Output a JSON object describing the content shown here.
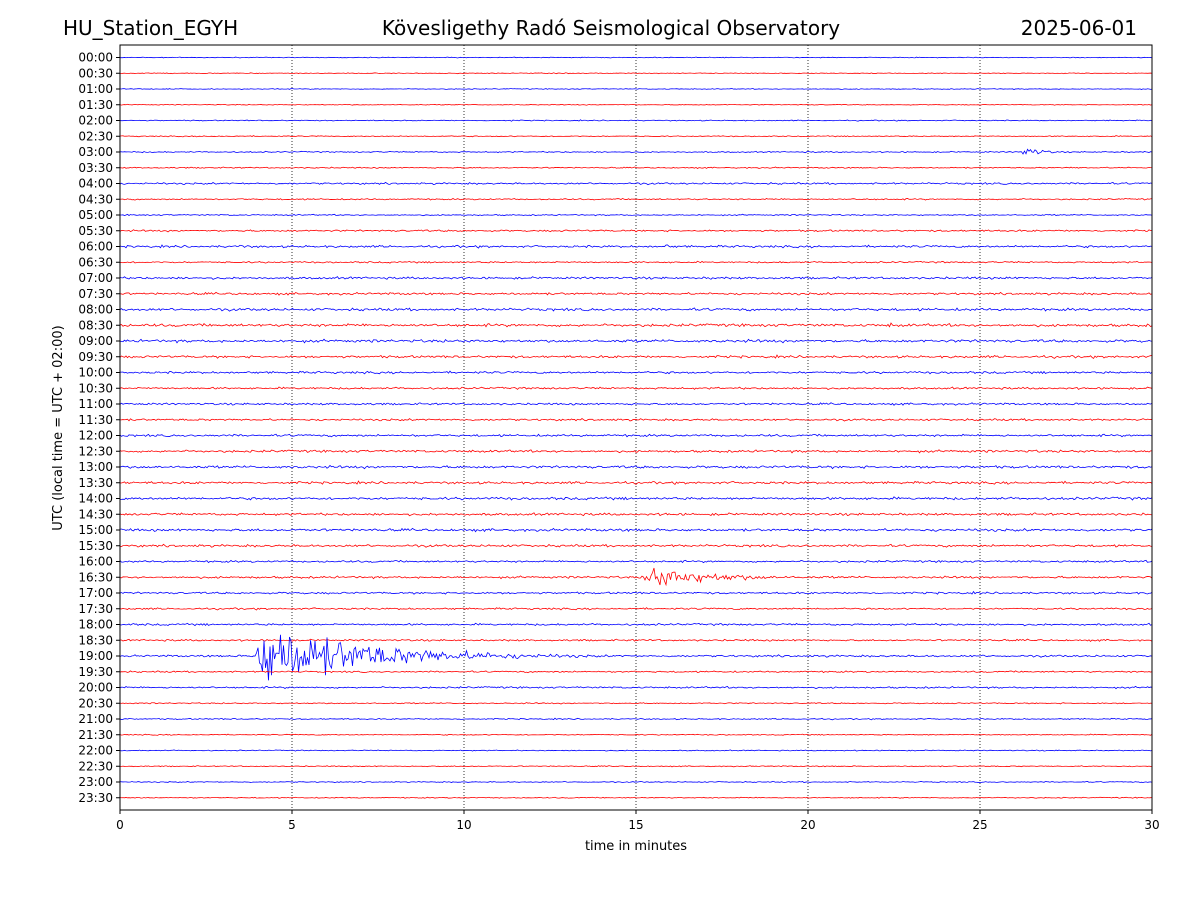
{
  "header": {
    "station": "HU_Station_EGYH",
    "observatory": "Kövesligethy Radó Seismological Observatory",
    "date": "2025-06-01"
  },
  "chart_data": {
    "type": "line",
    "title": "Kövesligethy Radó Seismological Observatory",
    "xlabel": "time in minutes",
    "ylabel": "UTC (local time = UTC + 02:00)",
    "xlim": [
      0,
      30
    ],
    "x_ticks": [
      0,
      5,
      10,
      15,
      20,
      25,
      30
    ],
    "x_tick_labels": [
      "0",
      "5",
      "10",
      "15",
      "20",
      "25",
      "30"
    ],
    "vertical_gridlines_at": [
      5,
      10,
      15,
      20,
      25
    ],
    "grid": "vertical dotted",
    "trace_colors": [
      "#0000ff",
      "#ff0000"
    ],
    "rows": [
      "00:00",
      "00:30",
      "01:00",
      "01:30",
      "02:00",
      "02:30",
      "03:00",
      "03:30",
      "04:00",
      "04:30",
      "05:00",
      "05:30",
      "06:00",
      "06:30",
      "07:00",
      "07:30",
      "08:00",
      "08:30",
      "09:00",
      "09:30",
      "10:00",
      "10:30",
      "11:00",
      "11:30",
      "12:00",
      "12:30",
      "13:00",
      "13:30",
      "14:00",
      "14:30",
      "15:00",
      "15:30",
      "16:00",
      "16:30",
      "17:00",
      "17:30",
      "18:00",
      "18:30",
      "19:00",
      "19:30",
      "20:00",
      "20:30",
      "21:00",
      "21:30",
      "22:00",
      "22:30",
      "23:00",
      "23:30"
    ],
    "noise_levels": [
      0.4,
      0.4,
      0.4,
      0.4,
      0.5,
      0.5,
      0.6,
      0.6,
      0.9,
      0.7,
      0.6,
      0.9,
      1.1,
      0.8,
      1.1,
      1.1,
      1.3,
      1.4,
      1.4,
      1.2,
      1.1,
      1.0,
      1.0,
      1.0,
      1.1,
      1.2,
      1.3,
      1.2,
      1.3,
      1.2,
      1.3,
      1.2,
      1.0,
      1.1,
      1.0,
      0.9,
      1.0,
      0.9,
      1.0,
      0.8,
      0.9,
      0.6,
      0.6,
      0.5,
      0.5,
      0.5,
      0.5,
      0.5
    ],
    "events": [
      {
        "row": "02:00",
        "start_min": 11.3,
        "peak": 1.5,
        "duration_min": 0.8
      },
      {
        "row": "03:00",
        "start_min": 26.2,
        "peak": 7,
        "duration_min": 1.5
      },
      {
        "row": "03:30",
        "start_min": 27.6,
        "peak": 2,
        "duration_min": 0.8
      },
      {
        "row": "05:30",
        "start_min": 0.7,
        "peak": 2,
        "duration_min": 0.6
      },
      {
        "row": "06:00",
        "start_min": 3.4,
        "peak": 5,
        "duration_min": 0.6
      },
      {
        "row": "06:00",
        "start_min": 15.8,
        "peak": 5,
        "duration_min": 0.4
      },
      {
        "row": "07:00",
        "start_min": 17.1,
        "peak": 3,
        "duration_min": 0.5
      },
      {
        "row": "07:00",
        "start_min": 25.7,
        "peak": 3,
        "duration_min": 0.8
      },
      {
        "row": "08:00",
        "start_min": 10.9,
        "peak": 4,
        "duration_min": 0.6
      },
      {
        "row": "08:30",
        "start_min": 22.3,
        "peak": 3,
        "duration_min": 1.5
      },
      {
        "row": "12:30",
        "start_min": 26.5,
        "peak": 4,
        "duration_min": 0.3
      },
      {
        "row": "14:30",
        "start_min": 15.8,
        "peak": 3,
        "duration_min": 0.6
      },
      {
        "row": "15:00",
        "start_min": 5.5,
        "peak": 4,
        "duration_min": 0.5
      },
      {
        "row": "15:30",
        "start_min": 19.9,
        "peak": 3,
        "duration_min": 0.5
      },
      {
        "row": "16:30",
        "start_min": 15.2,
        "peak": 14,
        "duration_min": 5.5
      },
      {
        "row": "19:00",
        "start_min": 3.95,
        "peak": 40,
        "duration_min": 8.5
      },
      {
        "row": "20:00",
        "start_min": 15.3,
        "peak": 2,
        "duration_min": 0.5
      }
    ]
  }
}
